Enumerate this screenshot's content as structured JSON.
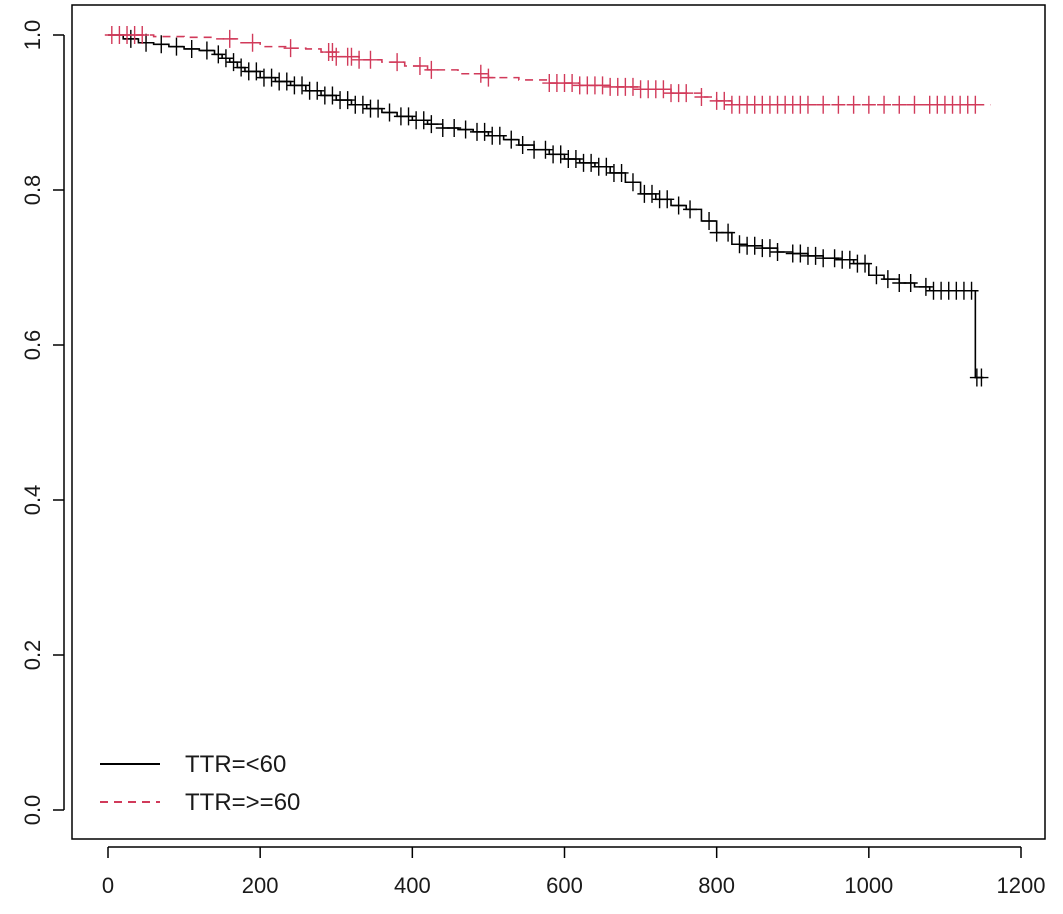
{
  "chart_data": {
    "type": "line",
    "subtype": "kaplan-meier step curves with censor marks",
    "xlim": [
      0,
      1200
    ],
    "ylim": [
      0.0,
      1.0
    ],
    "x_ticks": [
      0,
      200,
      400,
      600,
      800,
      1000,
      1200
    ],
    "y_ticks": [
      0.0,
      0.2,
      0.4,
      0.6,
      0.8,
      1.0
    ],
    "x_tick_labels": [
      "0",
      "200",
      "400",
      "600",
      "800",
      "1000",
      "1200"
    ],
    "y_tick_labels": [
      "0.0",
      "0.2",
      "0.4",
      "0.6",
      "0.8",
      "1.0"
    ],
    "xlabel": "",
    "ylabel": "",
    "title": "",
    "grid": false,
    "legend_position": "bottom-left",
    "series": [
      {
        "name": "TTR=<60",
        "color": "#000000",
        "line_style": "solid",
        "x": [
          0,
          20,
          40,
          60,
          80,
          100,
          120,
          140,
          150,
          160,
          170,
          180,
          200,
          220,
          240,
          260,
          280,
          300,
          320,
          340,
          360,
          380,
          400,
          420,
          440,
          460,
          480,
          500,
          520,
          540,
          560,
          580,
          600,
          620,
          640,
          660,
          680,
          700,
          720,
          740,
          760,
          780,
          800,
          820,
          840,
          860,
          880,
          900,
          920,
          940,
          960,
          980,
          1000,
          1020,
          1040,
          1060,
          1080,
          1100,
          1120,
          1140,
          1150
        ],
        "y": [
          1.0,
          0.995,
          0.99,
          0.988,
          0.985,
          0.982,
          0.98,
          0.975,
          0.97,
          0.965,
          0.958,
          0.953,
          0.945,
          0.94,
          0.935,
          0.928,
          0.922,
          0.916,
          0.91,
          0.905,
          0.9,
          0.895,
          0.89,
          0.885,
          0.88,
          0.878,
          0.875,
          0.87,
          0.865,
          0.858,
          0.852,
          0.846,
          0.84,
          0.835,
          0.83,
          0.822,
          0.81,
          0.795,
          0.788,
          0.78,
          0.775,
          0.76,
          0.745,
          0.73,
          0.728,
          0.725,
          0.72,
          0.718,
          0.715,
          0.712,
          0.71,
          0.705,
          0.69,
          0.685,
          0.68,
          0.675,
          0.67,
          0.67,
          0.67,
          0.558,
          0.558
        ],
        "censor_x": [
          30,
          50,
          70,
          90,
          110,
          130,
          145,
          155,
          165,
          175,
          185,
          195,
          205,
          215,
          225,
          235,
          245,
          255,
          265,
          275,
          285,
          295,
          305,
          315,
          325,
          335,
          345,
          355,
          370,
          385,
          395,
          405,
          415,
          425,
          440,
          455,
          470,
          485,
          495,
          505,
          515,
          530,
          545,
          560,
          575,
          585,
          595,
          605,
          615,
          625,
          635,
          645,
          655,
          665,
          675,
          690,
          705,
          715,
          725,
          735,
          750,
          765,
          790,
          800,
          815,
          830,
          840,
          850,
          860,
          870,
          880,
          900,
          910,
          920,
          930,
          940,
          955,
          965,
          975,
          985,
          995,
          1010,
          1025,
          1040,
          1055,
          1075,
          1085,
          1095,
          1105,
          1115,
          1125,
          1135,
          1142,
          1148
        ]
      },
      {
        "name": "TTR=>=60",
        "color": "#d13a5a",
        "line_style": "dashed",
        "x": [
          0,
          30,
          60,
          100,
          140,
          170,
          200,
          240,
          260,
          280,
          300,
          330,
          360,
          390,
          420,
          460,
          500,
          540,
          580,
          620,
          660,
          700,
          740,
          780,
          800,
          820,
          860,
          900,
          960,
          1020,
          1080,
          1120,
          1160
        ],
        "y": [
          1.0,
          1.0,
          0.998,
          0.997,
          0.995,
          0.99,
          0.985,
          0.983,
          0.982,
          0.978,
          0.972,
          0.968,
          0.965,
          0.96,
          0.955,
          0.95,
          0.945,
          0.942,
          0.938,
          0.935,
          0.933,
          0.93,
          0.925,
          0.92,
          0.915,
          0.91,
          0.91,
          0.91,
          0.91,
          0.91,
          0.91,
          0.91,
          0.91
        ],
        "censor_x": [
          5,
          15,
          25,
          35,
          45,
          160,
          190,
          240,
          290,
          295,
          300,
          315,
          320,
          330,
          345,
          380,
          410,
          425,
          490,
          500,
          580,
          590,
          600,
          610,
          620,
          630,
          640,
          650,
          660,
          670,
          680,
          690,
          700,
          710,
          720,
          730,
          740,
          750,
          760,
          780,
          800,
          810,
          820,
          830,
          840,
          850,
          860,
          870,
          880,
          890,
          900,
          910,
          920,
          940,
          960,
          980,
          1000,
          1020,
          1040,
          1060,
          1080,
          1090,
          1100,
          1110,
          1120,
          1130,
          1140
        ]
      }
    ]
  }
}
